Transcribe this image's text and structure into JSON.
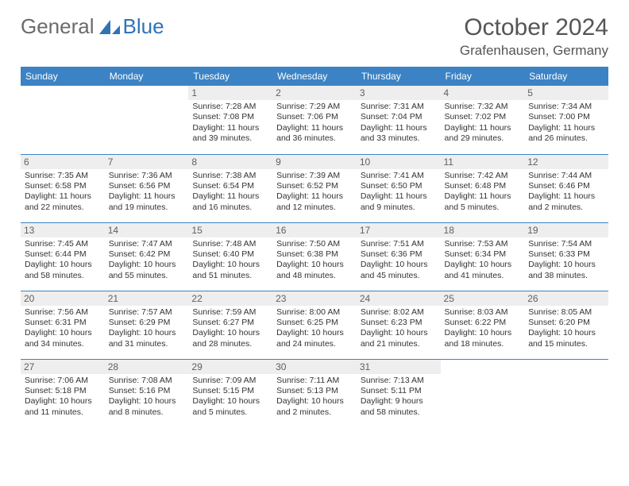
{
  "brand": {
    "part1": "General",
    "part2": "Blue",
    "logo_color": "#2f73b6"
  },
  "title": "October 2024",
  "location": "Grafenhausen, Germany",
  "colors": {
    "header_bg": "#3b83c4",
    "header_text": "#ffffff",
    "daynum_bg": "#eeeeee",
    "daynum_text": "#606060",
    "row_border": "#3b83c4",
    "body_text": "#333333"
  },
  "weekdays": [
    "Sunday",
    "Monday",
    "Tuesday",
    "Wednesday",
    "Thursday",
    "Friday",
    "Saturday"
  ],
  "weeks": [
    [
      {
        "n": "",
        "sr": "",
        "ss": "",
        "dl": ""
      },
      {
        "n": "",
        "sr": "",
        "ss": "",
        "dl": ""
      },
      {
        "n": "1",
        "sr": "Sunrise: 7:28 AM",
        "ss": "Sunset: 7:08 PM",
        "dl": "Daylight: 11 hours and 39 minutes."
      },
      {
        "n": "2",
        "sr": "Sunrise: 7:29 AM",
        "ss": "Sunset: 7:06 PM",
        "dl": "Daylight: 11 hours and 36 minutes."
      },
      {
        "n": "3",
        "sr": "Sunrise: 7:31 AM",
        "ss": "Sunset: 7:04 PM",
        "dl": "Daylight: 11 hours and 33 minutes."
      },
      {
        "n": "4",
        "sr": "Sunrise: 7:32 AM",
        "ss": "Sunset: 7:02 PM",
        "dl": "Daylight: 11 hours and 29 minutes."
      },
      {
        "n": "5",
        "sr": "Sunrise: 7:34 AM",
        "ss": "Sunset: 7:00 PM",
        "dl": "Daylight: 11 hours and 26 minutes."
      }
    ],
    [
      {
        "n": "6",
        "sr": "Sunrise: 7:35 AM",
        "ss": "Sunset: 6:58 PM",
        "dl": "Daylight: 11 hours and 22 minutes."
      },
      {
        "n": "7",
        "sr": "Sunrise: 7:36 AM",
        "ss": "Sunset: 6:56 PM",
        "dl": "Daylight: 11 hours and 19 minutes."
      },
      {
        "n": "8",
        "sr": "Sunrise: 7:38 AM",
        "ss": "Sunset: 6:54 PM",
        "dl": "Daylight: 11 hours and 16 minutes."
      },
      {
        "n": "9",
        "sr": "Sunrise: 7:39 AM",
        "ss": "Sunset: 6:52 PM",
        "dl": "Daylight: 11 hours and 12 minutes."
      },
      {
        "n": "10",
        "sr": "Sunrise: 7:41 AM",
        "ss": "Sunset: 6:50 PM",
        "dl": "Daylight: 11 hours and 9 minutes."
      },
      {
        "n": "11",
        "sr": "Sunrise: 7:42 AM",
        "ss": "Sunset: 6:48 PM",
        "dl": "Daylight: 11 hours and 5 minutes."
      },
      {
        "n": "12",
        "sr": "Sunrise: 7:44 AM",
        "ss": "Sunset: 6:46 PM",
        "dl": "Daylight: 11 hours and 2 minutes."
      }
    ],
    [
      {
        "n": "13",
        "sr": "Sunrise: 7:45 AM",
        "ss": "Sunset: 6:44 PM",
        "dl": "Daylight: 10 hours and 58 minutes."
      },
      {
        "n": "14",
        "sr": "Sunrise: 7:47 AM",
        "ss": "Sunset: 6:42 PM",
        "dl": "Daylight: 10 hours and 55 minutes."
      },
      {
        "n": "15",
        "sr": "Sunrise: 7:48 AM",
        "ss": "Sunset: 6:40 PM",
        "dl": "Daylight: 10 hours and 51 minutes."
      },
      {
        "n": "16",
        "sr": "Sunrise: 7:50 AM",
        "ss": "Sunset: 6:38 PM",
        "dl": "Daylight: 10 hours and 48 minutes."
      },
      {
        "n": "17",
        "sr": "Sunrise: 7:51 AM",
        "ss": "Sunset: 6:36 PM",
        "dl": "Daylight: 10 hours and 45 minutes."
      },
      {
        "n": "18",
        "sr": "Sunrise: 7:53 AM",
        "ss": "Sunset: 6:34 PM",
        "dl": "Daylight: 10 hours and 41 minutes."
      },
      {
        "n": "19",
        "sr": "Sunrise: 7:54 AM",
        "ss": "Sunset: 6:33 PM",
        "dl": "Daylight: 10 hours and 38 minutes."
      }
    ],
    [
      {
        "n": "20",
        "sr": "Sunrise: 7:56 AM",
        "ss": "Sunset: 6:31 PM",
        "dl": "Daylight: 10 hours and 34 minutes."
      },
      {
        "n": "21",
        "sr": "Sunrise: 7:57 AM",
        "ss": "Sunset: 6:29 PM",
        "dl": "Daylight: 10 hours and 31 minutes."
      },
      {
        "n": "22",
        "sr": "Sunrise: 7:59 AM",
        "ss": "Sunset: 6:27 PM",
        "dl": "Daylight: 10 hours and 28 minutes."
      },
      {
        "n": "23",
        "sr": "Sunrise: 8:00 AM",
        "ss": "Sunset: 6:25 PM",
        "dl": "Daylight: 10 hours and 24 minutes."
      },
      {
        "n": "24",
        "sr": "Sunrise: 8:02 AM",
        "ss": "Sunset: 6:23 PM",
        "dl": "Daylight: 10 hours and 21 minutes."
      },
      {
        "n": "25",
        "sr": "Sunrise: 8:03 AM",
        "ss": "Sunset: 6:22 PM",
        "dl": "Daylight: 10 hours and 18 minutes."
      },
      {
        "n": "26",
        "sr": "Sunrise: 8:05 AM",
        "ss": "Sunset: 6:20 PM",
        "dl": "Daylight: 10 hours and 15 minutes."
      }
    ],
    [
      {
        "n": "27",
        "sr": "Sunrise: 7:06 AM",
        "ss": "Sunset: 5:18 PM",
        "dl": "Daylight: 10 hours and 11 minutes."
      },
      {
        "n": "28",
        "sr": "Sunrise: 7:08 AM",
        "ss": "Sunset: 5:16 PM",
        "dl": "Daylight: 10 hours and 8 minutes."
      },
      {
        "n": "29",
        "sr": "Sunrise: 7:09 AM",
        "ss": "Sunset: 5:15 PM",
        "dl": "Daylight: 10 hours and 5 minutes."
      },
      {
        "n": "30",
        "sr": "Sunrise: 7:11 AM",
        "ss": "Sunset: 5:13 PM",
        "dl": "Daylight: 10 hours and 2 minutes."
      },
      {
        "n": "31",
        "sr": "Sunrise: 7:13 AM",
        "ss": "Sunset: 5:11 PM",
        "dl": "Daylight: 9 hours and 58 minutes."
      },
      {
        "n": "",
        "sr": "",
        "ss": "",
        "dl": ""
      },
      {
        "n": "",
        "sr": "",
        "ss": "",
        "dl": ""
      }
    ]
  ]
}
